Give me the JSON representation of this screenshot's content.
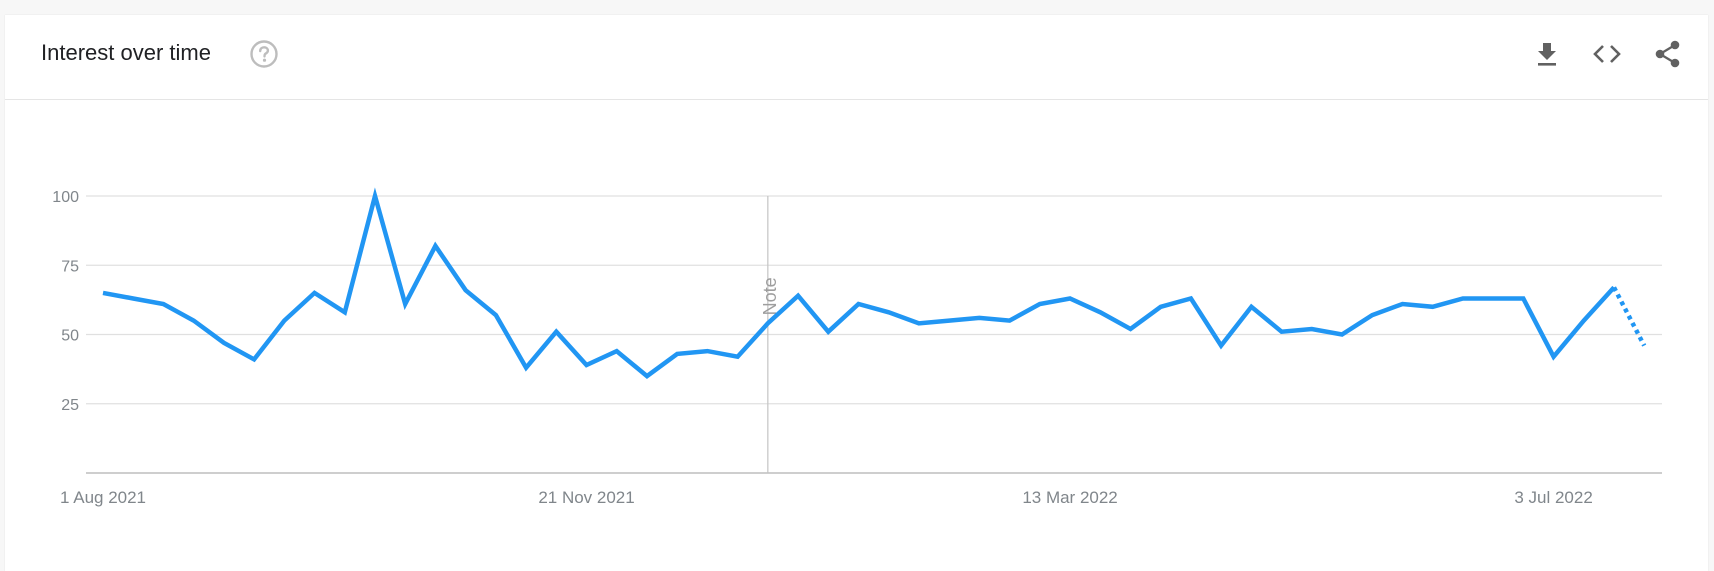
{
  "header": {
    "title": "Interest over time",
    "help_icon": "help-circle-icon",
    "actions": [
      {
        "name": "download-button",
        "icon": "download-icon"
      },
      {
        "name": "embed-button",
        "icon": "code-icon"
      },
      {
        "name": "share-button",
        "icon": "share-icon"
      }
    ]
  },
  "chart_data": {
    "type": "line",
    "title": "Interest over time",
    "xlabel": "",
    "ylabel": "",
    "ylim": [
      0,
      100
    ],
    "y_ticks": [
      25,
      50,
      75,
      100
    ],
    "x_tick_labels": [
      "1 Aug 2021",
      "21 Nov 2021",
      "13 Mar 2022",
      "3 Jul 2022"
    ],
    "x_tick_dates": [
      "2021-08-01",
      "2021-11-21",
      "2022-03-13",
      "2022-07-03"
    ],
    "grid": true,
    "annotation": {
      "label": "Note",
      "date": "2022-01-02"
    },
    "line_color": "#2196f3",
    "series": [
      {
        "x": [
          "2021-08-01",
          "2021-08-08",
          "2021-08-15",
          "2021-08-22",
          "2021-08-29",
          "2021-09-05",
          "2021-09-12",
          "2021-09-19",
          "2021-09-26",
          "2021-10-03",
          "2021-10-10",
          "2021-10-17",
          "2021-10-24",
          "2021-10-31",
          "2021-11-07",
          "2021-11-14",
          "2021-11-21",
          "2021-11-28",
          "2021-12-05",
          "2021-12-12",
          "2021-12-19",
          "2021-12-26",
          "2022-01-02",
          "2022-01-09",
          "2022-01-16",
          "2022-01-23",
          "2022-01-30",
          "2022-02-06",
          "2022-02-13",
          "2022-02-20",
          "2022-02-27",
          "2022-03-06",
          "2022-03-13",
          "2022-03-20",
          "2022-03-27",
          "2022-04-03",
          "2022-04-10",
          "2022-04-17",
          "2022-04-24",
          "2022-05-01",
          "2022-05-08",
          "2022-05-15",
          "2022-05-22",
          "2022-05-29",
          "2022-06-05",
          "2022-06-12",
          "2022-06-19",
          "2022-06-26",
          "2022-07-03",
          "2022-07-10",
          "2022-07-17",
          "2022-07-24"
        ],
        "values": [
          65,
          63,
          61,
          55,
          47,
          41,
          55,
          65,
          58,
          100,
          61,
          82,
          66,
          57,
          38,
          51,
          39,
          44,
          35,
          43,
          44,
          42,
          54,
          64,
          51,
          61,
          58,
          54,
          55,
          56,
          55,
          61,
          63,
          58,
          52,
          60,
          63,
          46,
          60,
          51,
          52,
          50,
          57,
          61,
          60,
          63,
          63,
          63,
          42,
          55,
          67,
          46
        ],
        "partial_from_index": 50
      }
    ]
  }
}
